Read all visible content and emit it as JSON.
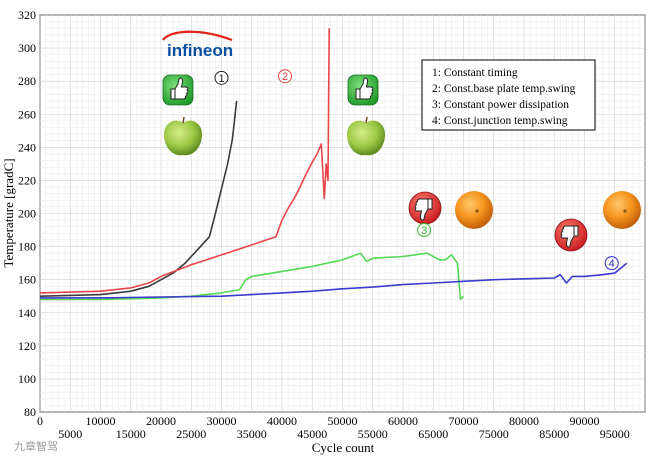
{
  "chart_data": {
    "type": "line",
    "title": "",
    "xlabel": "Cycle count",
    "ylabel": "Temperature [gradC]",
    "xlim": [
      0,
      100000
    ],
    "ylim": [
      80,
      320
    ],
    "x_ticks_upper": [
      "0",
      "10000",
      "20000",
      "30000",
      "40000",
      "50000",
      "60000",
      "70000",
      "80000",
      "90000"
    ],
    "x_ticks_lower": [
      "5000",
      "15000",
      "25000",
      "35000",
      "45000",
      "55000",
      "65000",
      "75000",
      "85000",
      "95000"
    ],
    "y_ticks": [
      "80",
      "100",
      "120",
      "140",
      "160",
      "180",
      "200",
      "220",
      "240",
      "260",
      "280",
      "300",
      "320"
    ],
    "grid": true,
    "legend_position": "top-right",
    "legend": [
      "1: Constant timing",
      "2: Const.base plate temp.swing",
      "3: Constant power dissipation",
      "4: Const.junction temp.swing"
    ],
    "series": [
      {
        "color": "#3a3a3a",
        "points": [
          [
            0,
            150
          ],
          [
            5000,
            150.5
          ],
          [
            10000,
            151
          ],
          [
            15000,
            153
          ],
          [
            18000,
            156
          ],
          [
            20000,
            160
          ],
          [
            22000,
            164
          ],
          [
            24000,
            170
          ],
          [
            26000,
            178
          ],
          [
            28000,
            186
          ],
          [
            29000,
            200
          ],
          [
            30000,
            215
          ],
          [
            31000,
            230
          ],
          [
            31800,
            245
          ],
          [
            32200,
            258
          ],
          [
            32500,
            268
          ]
        ]
      },
      {
        "color": "#e8454a",
        "points": [
          [
            0,
            152
          ],
          [
            5000,
            152.5
          ],
          [
            10000,
            153
          ],
          [
            15000,
            155
          ],
          [
            18000,
            158
          ],
          [
            20000,
            162
          ],
          [
            25000,
            169
          ],
          [
            30000,
            175
          ],
          [
            35000,
            181
          ],
          [
            39000,
            186
          ],
          [
            40000,
            196
          ],
          [
            41000,
            203
          ],
          [
            42000,
            209
          ],
          [
            43000,
            216
          ],
          [
            44000,
            224
          ],
          [
            45000,
            231
          ],
          [
            45800,
            236
          ],
          [
            46500,
            242
          ],
          [
            47000,
            209
          ],
          [
            47300,
            230
          ],
          [
            47600,
            220
          ],
          [
            47800,
            312
          ]
        ]
      },
      {
        "color": "#55d855",
        "points": [
          [
            0,
            148
          ],
          [
            10000,
            148
          ],
          [
            20000,
            149
          ],
          [
            25000,
            150
          ],
          [
            30000,
            152
          ],
          [
            33000,
            154
          ],
          [
            34000,
            160
          ],
          [
            35000,
            162
          ],
          [
            40000,
            165
          ],
          [
            45000,
            168
          ],
          [
            50000,
            172
          ],
          [
            53000,
            176
          ],
          [
            54000,
            171
          ],
          [
            55000,
            173
          ],
          [
            60000,
            174
          ],
          [
            64000,
            176
          ],
          [
            66000,
            172
          ],
          [
            67000,
            172
          ],
          [
            68000,
            175
          ],
          [
            69000,
            170
          ],
          [
            69500,
            148
          ],
          [
            70000,
            150
          ]
        ]
      },
      {
        "color": "#3b3bcc",
        "points": [
          [
            0,
            149
          ],
          [
            10000,
            149
          ],
          [
            20000,
            149.5
          ],
          [
            30000,
            150
          ],
          [
            35000,
            151
          ],
          [
            40000,
            152
          ],
          [
            45000,
            153
          ],
          [
            50000,
            154.5
          ],
          [
            55000,
            155.5
          ],
          [
            60000,
            157
          ],
          [
            65000,
            158
          ],
          [
            70000,
            159
          ],
          [
            75000,
            160
          ],
          [
            80000,
            160.5
          ],
          [
            85000,
            161
          ],
          [
            86000,
            163
          ],
          [
            87000,
            158
          ],
          [
            88000,
            162
          ],
          [
            90000,
            162
          ],
          [
            93000,
            163
          ],
          [
            95000,
            164
          ],
          [
            96000,
            167
          ],
          [
            97000,
            170
          ]
        ]
      }
    ],
    "annotations": {
      "markers": [
        {
          "label": "1",
          "color": "#222222",
          "x": 30000,
          "y": 282
        },
        {
          "label": "2",
          "color": "#e04040",
          "x": 40500,
          "y": 283
        },
        {
          "label": "3",
          "color": "#33bb33",
          "x": 63500,
          "y": 190
        },
        {
          "label": "4",
          "color": "#2a2ac8",
          "x": 94500,
          "y": 170
        }
      ],
      "logo_text": "infineon"
    }
  },
  "watermark": "九章智驾",
  "icons": [
    "thumbs-up-icon",
    "thumbs-down-icon",
    "green-apple-icon",
    "orange-icon"
  ]
}
